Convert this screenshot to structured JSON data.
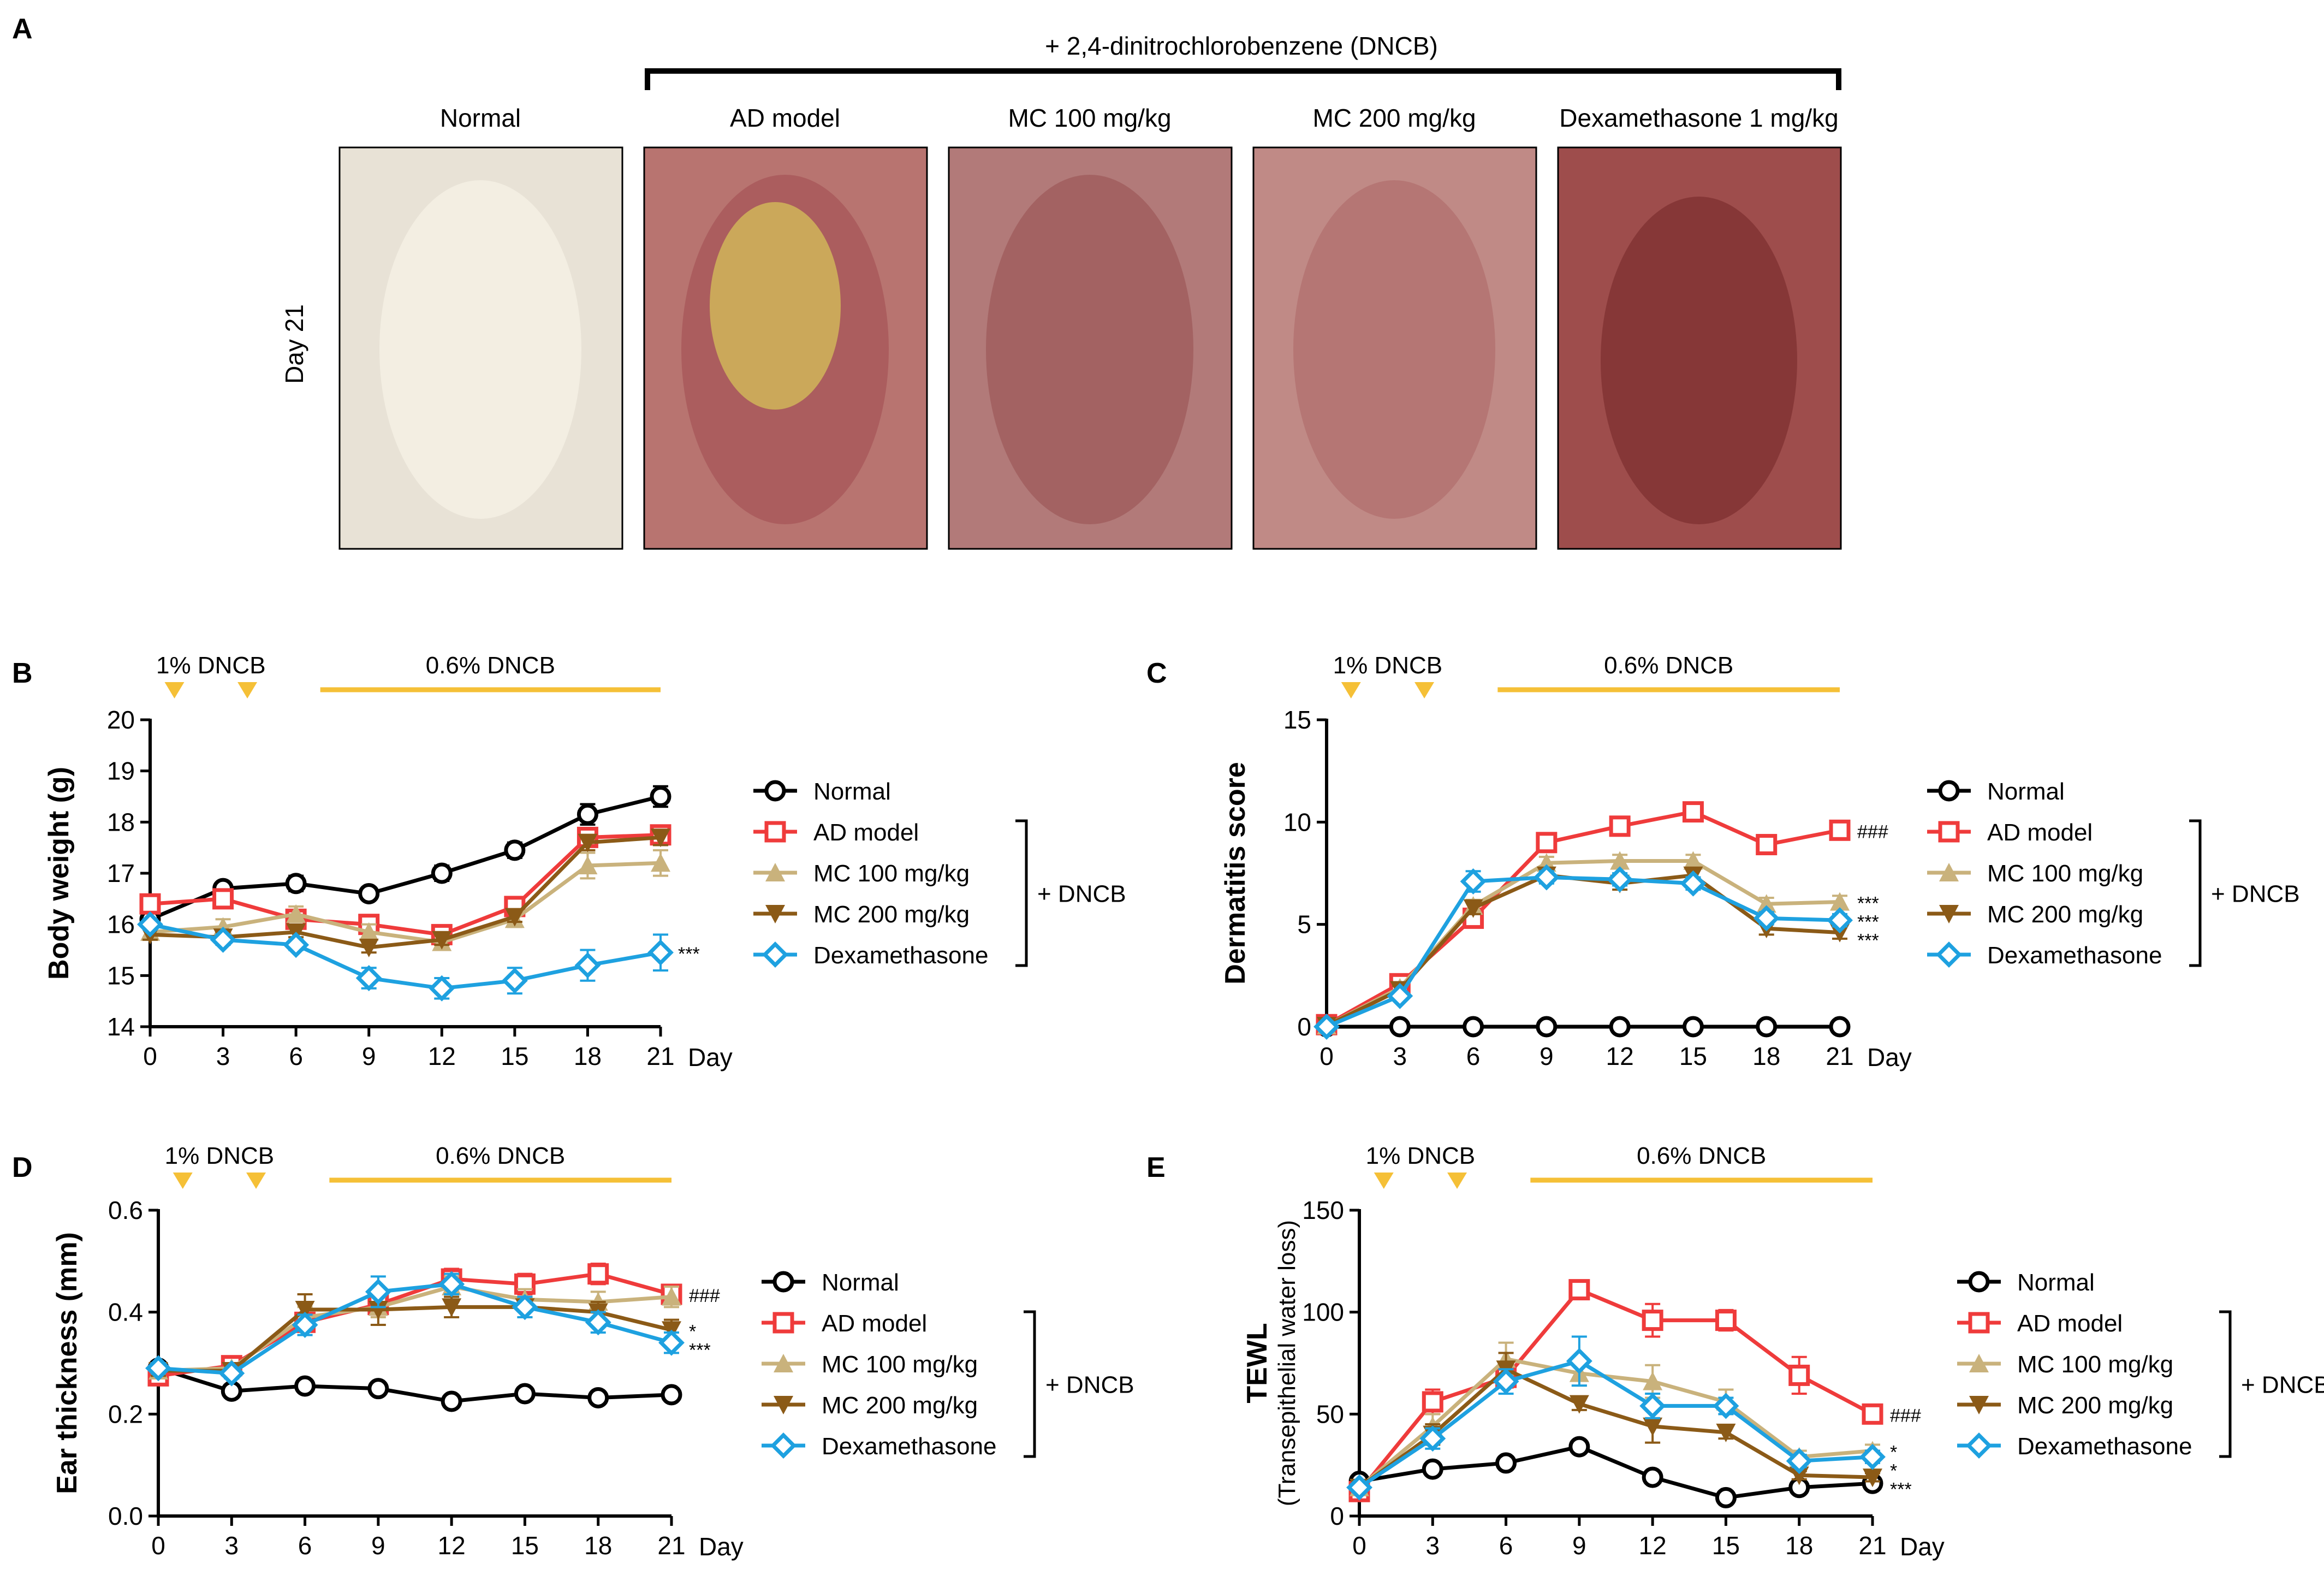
{
  "figure": {
    "panel_labels": [
      "A",
      "B",
      "C",
      "D",
      "E"
    ],
    "treatment_bracket_label": "+ 2,4-dinitrochlorobenzene (DNCB)",
    "row_label": "Day 21",
    "photos": [
      {
        "label": "Normal",
        "color": "#e8e2d6"
      },
      {
        "label": "AD model",
        "color": "#b87470"
      },
      {
        "label": "MC 100 mg/kg",
        "color": "#b27a79"
      },
      {
        "label": "MC 200 mg/kg",
        "color": "#c08a86"
      },
      {
        "label": "Dexamethasone 1 mg/kg",
        "color": "#9e4d4c"
      }
    ]
  },
  "colors": {
    "Normal": "#000000",
    "AD model": "#ef3b3b",
    "MC 100 mg/kg": "#c9b27c",
    "MC 200 mg/kg": "#8b5a17",
    "Dexamethasone": "#1ea1e0",
    "dosing": "#f5c037"
  },
  "chart_data": [
    {
      "panel": "B",
      "type": "line",
      "ylabel": "Body weight (g)",
      "ylabel_sub": "",
      "xlabel": "Day",
      "x": [
        0,
        3,
        6,
        9,
        12,
        15,
        18,
        21
      ],
      "ylim": [
        14,
        20
      ],
      "yticks": [
        14,
        15,
        16,
        17,
        18,
        19,
        20
      ],
      "ytick_labels": [
        "14",
        "15",
        "16",
        "17",
        "18",
        "19",
        "20"
      ],
      "dose1_label": "1% DNCB",
      "dose1_days": [
        1,
        4
      ],
      "dose2_label": "0.6% DNCB",
      "dose2_range": [
        7,
        21
      ],
      "series": [
        {
          "name": "Normal",
          "values": [
            16.1,
            16.7,
            16.8,
            16.6,
            17.0,
            17.45,
            18.15,
            18.5
          ],
          "err": [
            0.12,
            0.1,
            0.15,
            0.1,
            0.15,
            0.15,
            0.2,
            0.2
          ]
        },
        {
          "name": "AD model",
          "values": [
            16.4,
            16.5,
            16.1,
            16.0,
            15.8,
            16.35,
            17.7,
            17.75
          ],
          "err": [
            0.1,
            0.1,
            0.1,
            0.1,
            0.1,
            0.1,
            0.15,
            0.15
          ]
        },
        {
          "name": "MC 100 mg/kg",
          "values": [
            15.85,
            15.95,
            16.2,
            15.85,
            15.65,
            16.1,
            17.15,
            17.2
          ],
          "err": [
            0.15,
            0.15,
            0.15,
            0.15,
            0.15,
            0.15,
            0.25,
            0.25
          ]
        },
        {
          "name": "MC 200 mg/kg",
          "values": [
            15.8,
            15.75,
            15.85,
            15.55,
            15.7,
            16.15,
            17.6,
            17.7
          ],
          "err": [
            0.1,
            0.1,
            0.1,
            0.1,
            0.1,
            0.1,
            0.15,
            0.15
          ]
        },
        {
          "name": "Dexamethasone",
          "values": [
            16.0,
            15.7,
            15.6,
            14.95,
            14.75,
            14.9,
            15.2,
            15.45
          ],
          "err": [
            0.1,
            0.1,
            0.1,
            0.2,
            0.2,
            0.25,
            0.3,
            0.35
          ]
        }
      ],
      "annotations": [
        {
          "series": "Dexamethasone",
          "text": "***"
        }
      ],
      "legend": [
        "Normal",
        "AD model",
        "MC 100 mg/kg",
        "MC 200 mg/kg",
        "Dexamethasone"
      ],
      "bracket_label": "+ DNCB"
    },
    {
      "panel": "C",
      "type": "line",
      "ylabel": "Dermatitis score",
      "ylabel_sub": "",
      "xlabel": "Day",
      "x": [
        0,
        3,
        6,
        9,
        12,
        15,
        18,
        21
      ],
      "ylim": [
        0,
        15
      ],
      "yticks": [
        0,
        5,
        10,
        15
      ],
      "ytick_labels": [
        "0",
        "5",
        "10",
        "15"
      ],
      "dose1_label": "1% DNCB",
      "dose1_days": [
        1,
        4
      ],
      "dose2_label": "0.6% DNCB",
      "dose2_range": [
        7,
        21
      ],
      "series": [
        {
          "name": "Normal",
          "values": [
            0,
            0,
            0,
            0,
            0,
            0,
            0,
            0
          ],
          "err": [
            0,
            0,
            0,
            0,
            0,
            0,
            0,
            0
          ]
        },
        {
          "name": "AD model",
          "values": [
            0.1,
            2.1,
            5.3,
            9.0,
            9.8,
            10.5,
            8.9,
            9.6
          ],
          "err": [
            0.1,
            0.2,
            0.3,
            0.3,
            0.3,
            0.3,
            0.3,
            0.3
          ]
        },
        {
          "name": "MC 100 mg/kg",
          "values": [
            0.05,
            1.9,
            5.9,
            8.0,
            8.1,
            8.1,
            6.0,
            6.1
          ],
          "err": [
            0.1,
            0.2,
            0.3,
            0.3,
            0.3,
            0.3,
            0.3,
            0.3
          ]
        },
        {
          "name": "MC 200 mg/kg",
          "values": [
            0.05,
            1.8,
            5.8,
            7.4,
            7.0,
            7.4,
            4.8,
            4.6
          ],
          "err": [
            0.1,
            0.2,
            0.3,
            0.3,
            0.3,
            0.3,
            0.3,
            0.3
          ]
        },
        {
          "name": "Dexamethasone",
          "values": [
            0.0,
            1.5,
            7.1,
            7.3,
            7.2,
            7.0,
            5.3,
            5.2
          ],
          "err": [
            0.1,
            0.2,
            0.5,
            0.3,
            0.3,
            0.3,
            0.3,
            0.3
          ]
        }
      ],
      "annotations": [
        {
          "series": "AD model",
          "text": "###"
        },
        {
          "series": "MC 100 mg/kg",
          "text": "***"
        },
        {
          "series": "Dexamethasone",
          "text": "***"
        },
        {
          "series": "MC 200 mg/kg",
          "text": "***"
        }
      ],
      "legend": [
        "Normal",
        "AD model",
        "MC 100 mg/kg",
        "MC 200 mg/kg",
        "Dexamethasone"
      ],
      "bracket_label": "+ DNCB"
    },
    {
      "panel": "D",
      "type": "line",
      "ylabel": "Ear thickness  (mm)",
      "ylabel_sub": "",
      "xlabel": "Day",
      "x": [
        0,
        3,
        6,
        9,
        12,
        15,
        18,
        21
      ],
      "ylim": [
        0,
        0.6
      ],
      "yticks": [
        0,
        0.2,
        0.4,
        0.6
      ],
      "ytick_labels": [
        "0.0",
        "0.2",
        "0.4",
        "0.6"
      ],
      "dose1_label": "1% DNCB",
      "dose1_days": [
        1,
        4
      ],
      "dose2_label": "0.6% DNCB",
      "dose2_range": [
        7,
        21
      ],
      "series": [
        {
          "name": "Normal",
          "values": [
            0.29,
            0.245,
            0.255,
            0.25,
            0.225,
            0.24,
            0.232,
            0.238
          ],
          "err": [
            0.005,
            0.005,
            0.005,
            0.005,
            0.005,
            0.005,
            0.005,
            0.005
          ]
        },
        {
          "name": "AD model",
          "values": [
            0.275,
            0.295,
            0.38,
            0.415,
            0.465,
            0.455,
            0.475,
            0.435
          ],
          "err": [
            0.01,
            0.01,
            0.015,
            0.02,
            0.02,
            0.02,
            0.02,
            0.015
          ]
        },
        {
          "name": "MC 100 mg/kg",
          "values": [
            0.285,
            0.29,
            0.39,
            0.41,
            0.45,
            0.425,
            0.42,
            0.43
          ],
          "err": [
            0.01,
            0.01,
            0.02,
            0.02,
            0.02,
            0.02,
            0.02,
            0.02
          ]
        },
        {
          "name": "MC 200 mg/kg",
          "values": [
            0.285,
            0.285,
            0.405,
            0.405,
            0.41,
            0.41,
            0.4,
            0.365
          ],
          "err": [
            0.01,
            0.01,
            0.03,
            0.03,
            0.02,
            0.02,
            0.02,
            0.02
          ]
        },
        {
          "name": "Dexamethasone",
          "values": [
            0.29,
            0.28,
            0.375,
            0.44,
            0.455,
            0.41,
            0.38,
            0.34
          ],
          "err": [
            0.01,
            0.01,
            0.02,
            0.03,
            0.02,
            0.02,
            0.02,
            0.02
          ]
        }
      ],
      "annotations": [
        {
          "series": "AD model",
          "text": "###"
        },
        {
          "series": "MC 200 mg/kg",
          "text": "*"
        },
        {
          "series": "Dexamethasone",
          "text": "***"
        }
      ],
      "legend": [
        "Normal",
        "AD model",
        "MC 100 mg/kg",
        "MC 200 mg/kg",
        "Dexamethasone"
      ],
      "bracket_label": "+ DNCB"
    },
    {
      "panel": "E",
      "type": "line",
      "ylabel": "TEWL",
      "ylabel_sub": "(Transepithelial water loss)",
      "xlabel": "Day",
      "x": [
        0,
        3,
        6,
        9,
        12,
        15,
        18,
        21
      ],
      "ylim": [
        0,
        150
      ],
      "yticks": [
        0,
        50,
        100,
        150
      ],
      "ytick_labels": [
        "0",
        "50",
        "100",
        "150"
      ],
      "dose1_label": "1% DNCB",
      "dose1_days": [
        1,
        4
      ],
      "dose2_label": "0.6% DNCB",
      "dose2_range": [
        7,
        21
      ],
      "series": [
        {
          "name": "Normal",
          "values": [
            17,
            23,
            26,
            34,
            19,
            9,
            14,
            16
          ],
          "err": [
            1,
            1,
            1,
            1,
            1,
            1,
            1,
            1
          ]
        },
        {
          "name": "AD model",
          "values": [
            12,
            56,
            68,
            111,
            96,
            96,
            69,
            50
          ],
          "err": [
            2,
            6,
            5,
            4,
            8,
            5,
            9,
            3
          ]
        },
        {
          "name": "MC 100 mg/kg",
          "values": [
            14,
            44,
            77,
            70,
            66,
            56,
            29,
            32
          ],
          "err": [
            2,
            6,
            8,
            6,
            8,
            6,
            3,
            3
          ]
        },
        {
          "name": "MC 200 mg/kg",
          "values": [
            14,
            40,
            72,
            55,
            44,
            41,
            20,
            19
          ],
          "err": [
            2,
            5,
            8,
            3,
            8,
            3,
            2,
            2
          ]
        },
        {
          "name": "Dexamethasone",
          "values": [
            14,
            38,
            66,
            76,
            54,
            54,
            27,
            29
          ],
          "err": [
            2,
            5,
            6,
            12,
            6,
            4,
            3,
            3
          ]
        }
      ],
      "annotations": [
        {
          "series": "AD model",
          "text": "###"
        },
        {
          "series": "MC 100 mg/kg",
          "text": "*"
        },
        {
          "series": "Dexamethasone",
          "text": "*"
        },
        {
          "series": "MC 200 mg/kg",
          "text": "***"
        }
      ],
      "legend": [
        "Normal",
        "AD model",
        "MC 100 mg/kg",
        "MC 200 mg/kg",
        "Dexamethasone"
      ],
      "bracket_label": "+ DNCB"
    }
  ]
}
